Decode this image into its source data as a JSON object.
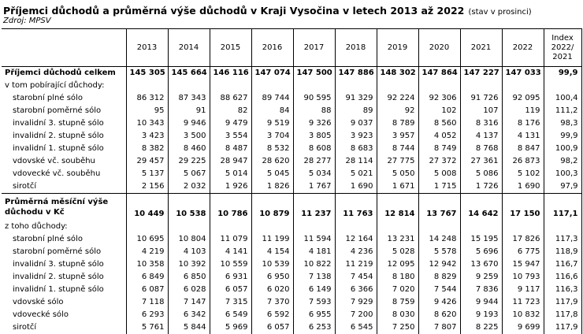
{
  "title": "Příjemci důchodů a průměrná výše důchodů v Kraji Vysočina v letech 2013 až 2022",
  "title_note": "(stav v prosinci)",
  "source": "Zdroj: MPSV",
  "table": {
    "years": [
      "2013",
      "2014",
      "2015",
      "2016",
      "2017",
      "2018",
      "2019",
      "2020",
      "2021",
      "2022"
    ],
    "index_header": [
      "Index",
      "2022/",
      "2021"
    ],
    "rows": [
      {
        "label": "Příjemci důchodů celkem",
        "values": [
          "145 305",
          "145 664",
          "146 116",
          "147 074",
          "147 500",
          "147 886",
          "148 302",
          "147 864",
          "147 227",
          "147 033"
        ],
        "index": "99,9",
        "style": "bold"
      },
      {
        "label": "v tom pobírající důchody:",
        "values": [
          "",
          "",
          "",
          "",
          "",
          "",
          "",
          "",
          "",
          ""
        ],
        "index": "",
        "style": "plain"
      },
      {
        "label": "starobní plné sólo",
        "values": [
          "86 312",
          "87 343",
          "88 627",
          "89 744",
          "90 595",
          "91 329",
          "92 224",
          "92 306",
          "91 726",
          "92 095"
        ],
        "index": "100,4",
        "style": "ind"
      },
      {
        "label": "starobní poměrné sólo",
        "values": [
          "95",
          "91",
          "82",
          "84",
          "88",
          "89",
          "92",
          "102",
          "107",
          "119"
        ],
        "index": "111,2",
        "style": "ind"
      },
      {
        "label": "invalidní 3. stupně sólo",
        "values": [
          "10 343",
          "9 946",
          "9 479",
          "9 519",
          "9 326",
          "9 037",
          "8 789",
          "8 560",
          "8 316",
          "8 176"
        ],
        "index": "98,3",
        "style": "ind"
      },
      {
        "label": "invalidní 2. stupně sólo",
        "values": [
          "3 423",
          "3 500",
          "3 554",
          "3 704",
          "3 805",
          "3 923",
          "3 957",
          "4 052",
          "4 137",
          "4 131"
        ],
        "index": "99,9",
        "style": "ind"
      },
      {
        "label": "invalidní 1. stupně sólo",
        "values": [
          "8 382",
          "8 460",
          "8 487",
          "8 532",
          "8 608",
          "8 683",
          "8 744",
          "8 749",
          "8 768",
          "8 847"
        ],
        "index": "100,9",
        "style": "ind"
      },
      {
        "label": "vdovské vč. souběhu",
        "values": [
          "29 457",
          "29 225",
          "28 947",
          "28 620",
          "28 277",
          "28 114",
          "27 775",
          "27 372",
          "27 361",
          "26 873"
        ],
        "index": "98,2",
        "style": "ind"
      },
      {
        "label": "vdovecké vč. souběhu",
        "values": [
          "5 137",
          "5 067",
          "5 014",
          "5 045",
          "5 034",
          "5 021",
          "5 050",
          "5 008",
          "5 086",
          "5 102"
        ],
        "index": "100,3",
        "style": "ind"
      },
      {
        "label": "sirotčí",
        "values": [
          "2 156",
          "2 032",
          "1 926",
          "1 826",
          "1 767",
          "1 690",
          "1 671",
          "1 715",
          "1 726",
          "1 690"
        ],
        "index": "97,9",
        "style": "ind"
      },
      {
        "label": "Průměrná měsíční výše důchodu v Kč",
        "values": [
          "10 449",
          "10 538",
          "10 786",
          "10 879",
          "11 237",
          "11 763",
          "12 814",
          "13 767",
          "14 642",
          "17 150"
        ],
        "index": "117,1",
        "style": "bold-tall"
      },
      {
        "label": "z toho důchody:",
        "values": [
          "",
          "",
          "",
          "",
          "",
          "",
          "",
          "",
          "",
          ""
        ],
        "index": "",
        "style": "plain"
      },
      {
        "label": "starobní plné sólo",
        "values": [
          "10 695",
          "10 804",
          "11 079",
          "11 199",
          "11 594",
          "12 164",
          "13 231",
          "14 248",
          "15 195",
          "17 826"
        ],
        "index": "117,3",
        "style": "ind"
      },
      {
        "label": "starobní poměrné sólo",
        "values": [
          "4 219",
          "4 103",
          "4 141",
          "4 154",
          "4 181",
          "4 236",
          "5 028",
          "5 578",
          "5 696",
          "6 775"
        ],
        "index": "118,9",
        "style": "ind"
      },
      {
        "label": "invalidní 3. stupně sólo",
        "values": [
          "10 358",
          "10 392",
          "10 559",
          "10 539",
          "10 822",
          "11 219",
          "12 095",
          "12 942",
          "13 670",
          "15 947"
        ],
        "index": "116,7",
        "style": "ind"
      },
      {
        "label": "invalidní 2. stupně sólo",
        "values": [
          "6 849",
          "6 850",
          "6 931",
          "6 950",
          "7 138",
          "7 454",
          "8 180",
          "8 829",
          "9 259",
          "10 793"
        ],
        "index": "116,6",
        "style": "ind"
      },
      {
        "label": "invalidní 1. stupně sólo",
        "values": [
          "6 087",
          "6 028",
          "6 057",
          "6 020",
          "6 149",
          "6 366",
          "7 020",
          "7 544",
          "7 836",
          "9 117"
        ],
        "index": "116,3",
        "style": "ind"
      },
      {
        "label": "vdovské sólo",
        "values": [
          "7 118",
          "7 147",
          "7 315",
          "7 370",
          "7 593",
          "7 929",
          "8 759",
          "9 426",
          "9 944",
          "11 723"
        ],
        "index": "117,9",
        "style": "ind"
      },
      {
        "label": "vdovecké sólo",
        "values": [
          "6 293",
          "6 342",
          "6 549",
          "6 592",
          "6 955",
          "7 200",
          "8 030",
          "8 620",
          "9 193",
          "10 832"
        ],
        "index": "117,8",
        "style": "ind"
      },
      {
        "label": "sirotčí",
        "values": [
          "5 761",
          "5 844",
          "5 969",
          "6 057",
          "6 253",
          "6 545",
          "7 250",
          "7 807",
          "8 225",
          "9 699"
        ],
        "index": "117,9",
        "style": "ind"
      }
    ]
  }
}
